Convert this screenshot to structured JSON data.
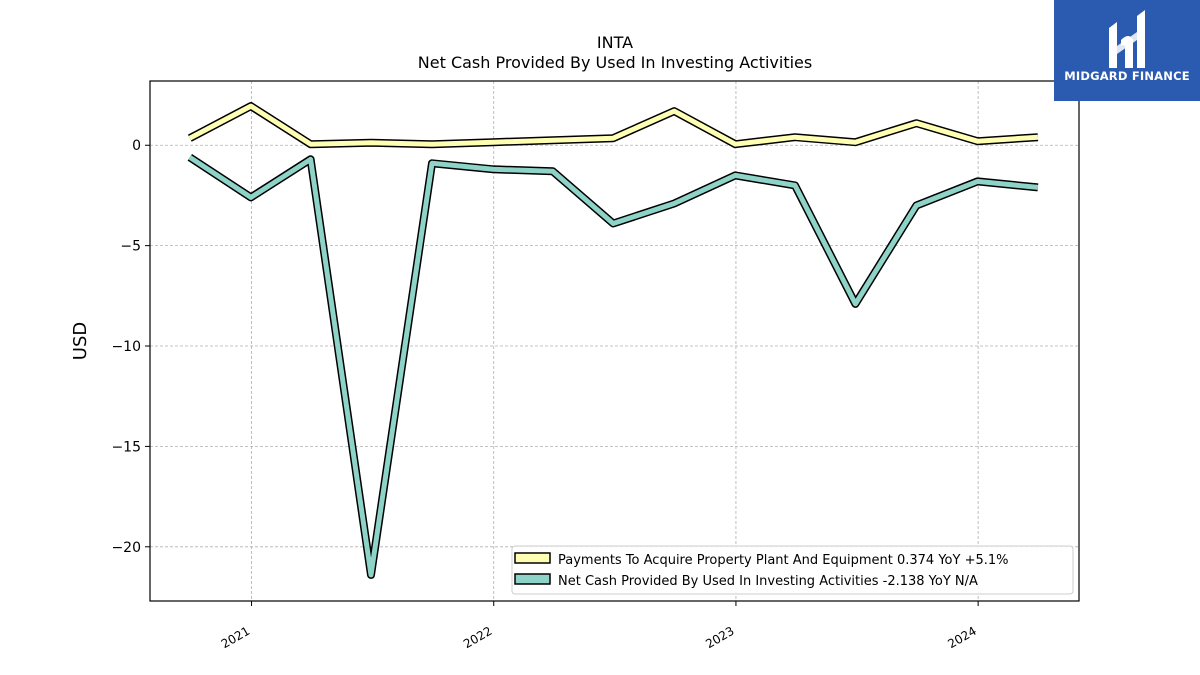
{
  "brand": {
    "name": "MIDGARD FINANCE",
    "bg_color": "#2a5bb0",
    "mark_icon": "midgard-logo-icon"
  },
  "chart_data": {
    "type": "line",
    "title": "INTA",
    "subtitle": "Net Cash Provided By Used In Investing Activities",
    "xlabel": "",
    "ylabel": "USD",
    "xlim": [
      "2020-08-01",
      "2024-06-01"
    ],
    "ylim": [
      -22.7,
      3.2
    ],
    "x_ticks": [
      "2021-01-01",
      "2022-01-01",
      "2023-01-01",
      "2024-01-01"
    ],
    "x_tick_labels": [
      "2021",
      "2022",
      "2023",
      "2024"
    ],
    "y_ticks": [
      0,
      -5,
      -10,
      -15,
      -20
    ],
    "y_tick_labels": [
      "0",
      "−5",
      "−10",
      "−15",
      "−20"
    ],
    "grid": true,
    "legend_position": "lower-right",
    "x": [
      "2020-09-30",
      "2020-12-31",
      "2021-03-31",
      "2021-06-30",
      "2021-09-30",
      "2021-12-31",
      "2022-03-31",
      "2022-06-30",
      "2022-09-30",
      "2022-12-31",
      "2023-03-31",
      "2023-06-30",
      "2023-09-30",
      "2023-12-31",
      "2024-03-31"
    ],
    "series": [
      {
        "name": "Payments To Acquire Property Plant And Equipment",
        "legend_label": "Payments To Acquire Property Plant And Equipment  0.374 YoY +5.1%",
        "color": "#ffffb3",
        "values": [
          0.35,
          1.95,
          0.05,
          0.12,
          0.05,
          0.15,
          0.25,
          0.35,
          1.7,
          0.05,
          0.4,
          0.15,
          1.1,
          0.2,
          0.4
        ]
      },
      {
        "name": "Net Cash Provided By Used In Investing Activities",
        "legend_label": "Net Cash Provided By Used In Investing Activities  -2.138 YoY N/A",
        "color": "#8dd3c7",
        "values": [
          -0.6,
          -2.6,
          -0.7,
          -21.4,
          -0.9,
          -1.2,
          -1.3,
          -3.9,
          -2.9,
          -1.5,
          -2.0,
          -7.9,
          -3.0,
          -1.8,
          -2.1
        ]
      }
    ]
  }
}
